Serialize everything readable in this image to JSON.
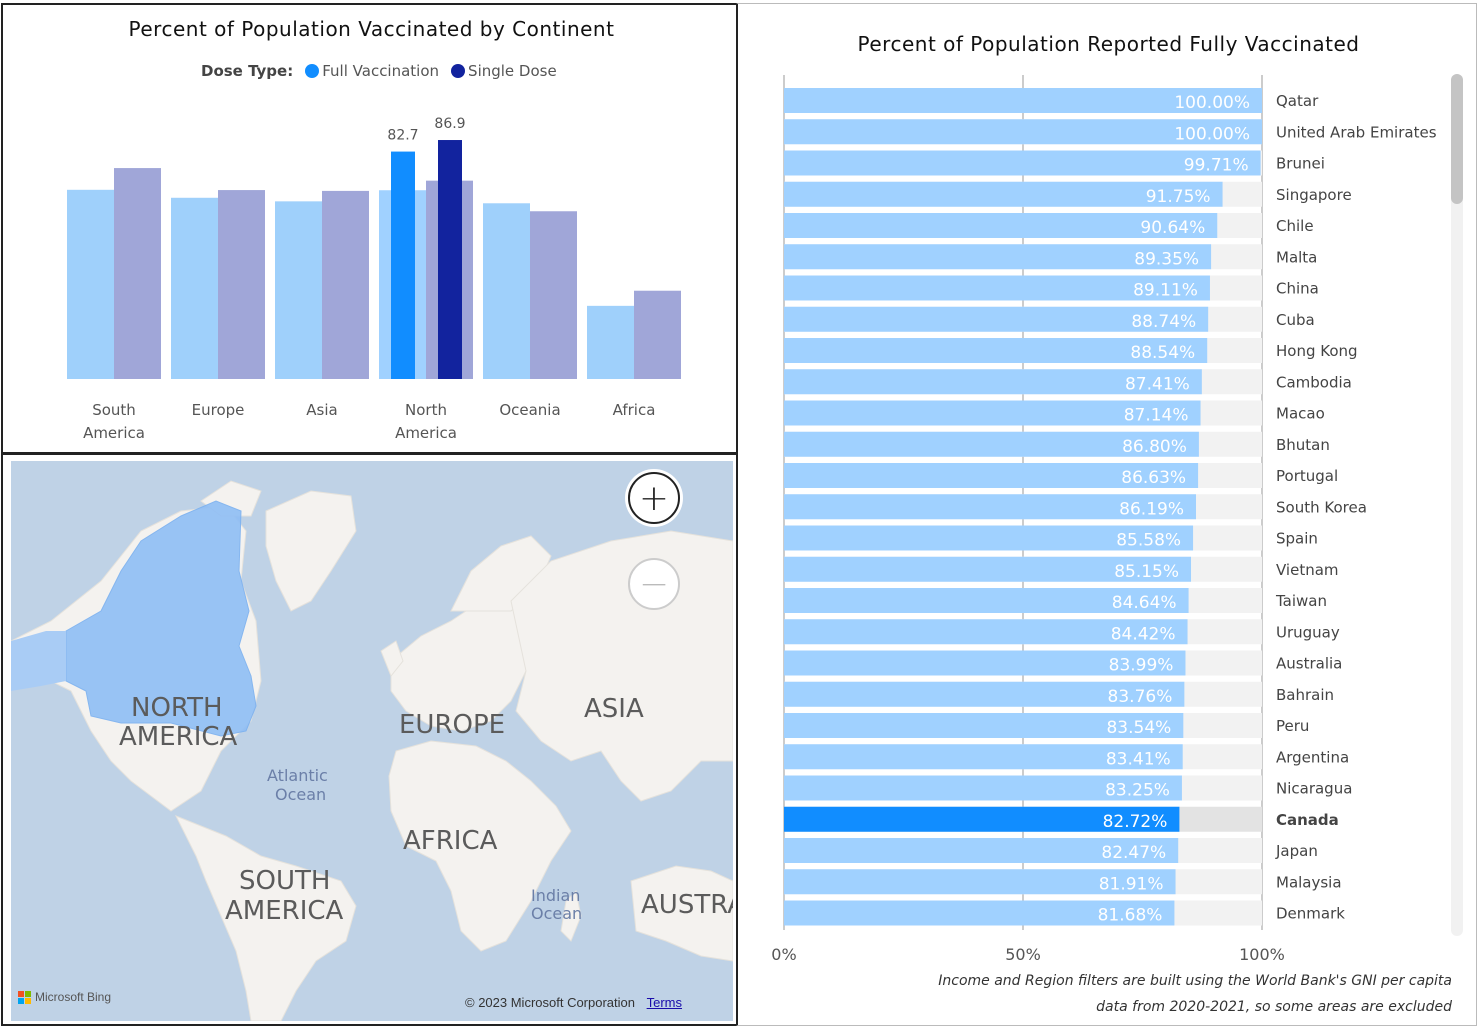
{
  "left_chart": {
    "title": "Percent of Population Vaccinated by Continent",
    "legend_label": "Dose Type:",
    "legend_items": [
      {
        "name": "Full Vaccination",
        "color": "#118dff"
      },
      {
        "name": "Single Dose",
        "color": "#12239e"
      }
    ]
  },
  "chart_data": [
    {
      "type": "bar",
      "title": "Percent of Population Vaccinated by Continent",
      "categories": [
        "South America",
        "Europe",
        "Asia",
        "North America",
        "Oceania",
        "Africa"
      ],
      "category_lines": [
        [
          "South",
          "America"
        ],
        [
          "Europe"
        ],
        [
          "Asia"
        ],
        [
          "North",
          "America"
        ],
        [
          "Oceania"
        ],
        [
          "Africa"
        ]
      ],
      "series": [
        {
          "name": "Full Vaccination",
          "values": [
            68.8,
            65.9,
            64.6,
            82.7,
            63.9,
            26.6
          ]
        },
        {
          "name": "Single Dose",
          "values": [
            76.7,
            68.7,
            68.4,
            86.9,
            61.0,
            32.1
          ]
        }
      ],
      "data_labels": {
        "North America": [
          "82.7",
          "86.9"
        ]
      },
      "highlighted_category": "North America",
      "ylim": [
        0,
        100
      ],
      "grid": false,
      "legend_position": "top"
    },
    {
      "type": "bar",
      "orientation": "horizontal",
      "title": "Percent of Population Reported Fully Vaccinated",
      "categories": [
        "Qatar",
        "United Arab Emirates",
        "Brunei",
        "Singapore",
        "Chile",
        "Malta",
        "China",
        "Cuba",
        "Hong Kong",
        "Cambodia",
        "Macao",
        "Bhutan",
        "Portugal",
        "South Korea",
        "Spain",
        "Vietnam",
        "Taiwan",
        "Uruguay",
        "Australia",
        "Bahrain",
        "Peru",
        "Argentina",
        "Nicaragua",
        "Canada",
        "Japan",
        "Malaysia",
        "Denmark"
      ],
      "values": [
        100.0,
        100.0,
        99.71,
        91.75,
        90.64,
        89.35,
        89.11,
        88.74,
        88.54,
        87.41,
        87.14,
        86.8,
        86.63,
        86.19,
        85.58,
        85.15,
        84.64,
        84.42,
        83.99,
        83.76,
        83.54,
        83.41,
        83.25,
        82.72,
        82.47,
        81.91,
        81.68
      ],
      "labels": [
        "100.00%",
        "100.00%",
        "99.71%",
        "91.75%",
        "90.64%",
        "89.35%",
        "89.11%",
        "88.74%",
        "88.54%",
        "87.41%",
        "87.14%",
        "86.80%",
        "86.63%",
        "86.19%",
        "85.58%",
        "85.15%",
        "84.64%",
        "84.42%",
        "83.99%",
        "83.76%",
        "83.54%",
        "83.41%",
        "83.25%",
        "82.72%",
        "82.47%",
        "81.91%",
        "81.68%"
      ],
      "highlighted_category": "Canada",
      "xlim": [
        0,
        100
      ],
      "x_ticks": [
        "0%",
        "50%",
        "100%"
      ],
      "colors": {
        "bar": "#a0d1ff",
        "highlight": "#118dff",
        "track": "#f2f2f2"
      }
    }
  ],
  "right_chart": {
    "title": "Percent of Population Reported Fully Vaccinated",
    "footnote_line1": "Income and Region filters are built using the World Bank's GNI per capita",
    "footnote_line2": "data from 2020-2021, so some areas are excluded"
  },
  "map": {
    "labels": {
      "north_america_1": "NORTH",
      "north_america_2": "AMERICA",
      "europe": "EUROPE",
      "asia": "ASIA",
      "africa": "AFRICA",
      "south_america_1": "SOUTH",
      "south_america_2": "AMERICA",
      "atlantic_1": "Atlantic",
      "atlantic_2": "Ocean",
      "indian_1": "Indian",
      "indian_2": "Ocean",
      "australia": "AUSTRA"
    },
    "zoom_in": "+",
    "zoom_out": "−",
    "provider": "Microsoft Bing",
    "copyright": "© 2023 Microsoft Corporation",
    "terms": "Terms",
    "colors": {
      "ocean": "#bfd2e6",
      "land": "#f4f2ef",
      "selected_region": "#8fbef5"
    }
  }
}
